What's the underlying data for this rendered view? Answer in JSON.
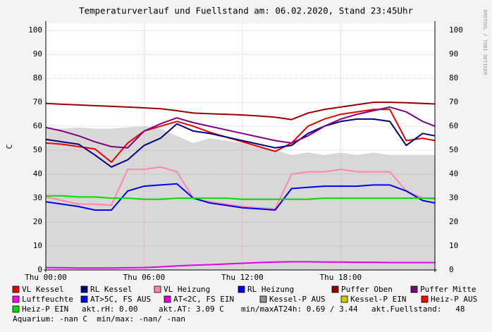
{
  "chart_data": {
    "type": "line",
    "title": "Temperaturverlauf und Fuellstand am: 06.02.2020, Stand 23:45Uhr",
    "y_label": "C",
    "watermark": "RRDTOOL / TOBI OETIKER",
    "x": [
      0,
      1,
      2,
      3,
      4,
      5,
      6,
      7,
      8,
      9,
      10,
      11,
      12,
      13,
      14,
      15,
      16,
      17,
      18,
      19,
      20,
      21,
      22,
      23,
      23.75
    ],
    "xlim": [
      0,
      23.75
    ],
    "xticks": [
      {
        "value": 0,
        "label": "Thu 00:00"
      },
      {
        "value": 6,
        "label": "Thu 06:00"
      },
      {
        "value": 12,
        "label": "Thu 12:00"
      },
      {
        "value": 18,
        "label": "Thu 18:00"
      }
    ],
    "ylim": [
      0,
      103
    ],
    "yticks": [
      0,
      10,
      20,
      30,
      40,
      50,
      60,
      70,
      80,
      90,
      100
    ],
    "grid": true,
    "series": [
      {
        "name": "VL Kessel",
        "color": "#ee0000",
        "values": [
          53,
          52.5,
          51.5,
          50.5,
          45,
          53,
          58,
          60,
          62,
          60,
          57.5,
          55.5,
          53.5,
          51.5,
          49.5,
          53,
          60,
          63,
          65,
          66,
          67,
          67,
          54,
          55,
          54
        ]
      },
      {
        "name": "RL Kessel",
        "color": "#000080",
        "values": [
          54.5,
          53.5,
          52.5,
          48,
          43,
          46,
          52,
          55,
          61,
          58,
          57,
          55.5,
          54,
          52.5,
          51,
          52,
          57,
          60,
          62,
          63,
          63,
          62,
          52,
          57,
          56
        ]
      },
      {
        "name": "VL Heizung",
        "color": "#ff88aa",
        "values": [
          30.5,
          29,
          27.5,
          27.5,
          27,
          42,
          42,
          43,
          41,
          30,
          28.5,
          27.5,
          26.5,
          26,
          25.5,
          40,
          41,
          41,
          42,
          41,
          41,
          41,
          33,
          30,
          29.5
        ]
      },
      {
        "name": "RL Heizung",
        "color": "#0000ee",
        "values": [
          28.5,
          27.5,
          26.5,
          25,
          25,
          33,
          35,
          35.5,
          36,
          30,
          28,
          27,
          26,
          25.5,
          25,
          34,
          34.5,
          35,
          35,
          35,
          35.5,
          35.5,
          33,
          29,
          28
        ]
      },
      {
        "name": "Puffer Oben",
        "color": "#990000",
        "values": [
          69.5,
          69.2,
          68.9,
          68.6,
          68.3,
          68,
          67.7,
          67.3,
          66.5,
          65.5,
          65.2,
          65,
          64.7,
          64.3,
          63.8,
          62.8,
          65.5,
          67,
          68,
          69,
          70,
          70,
          69.8,
          69.5,
          69.3
        ]
      },
      {
        "name": "Puffer Mitte",
        "color": "#800080",
        "values": [
          59.5,
          58,
          56,
          53.5,
          51.5,
          51,
          58,
          61,
          63.5,
          61.5,
          60,
          58.5,
          57,
          55.5,
          54,
          53,
          56,
          60,
          63,
          65,
          66.5,
          68,
          66,
          62,
          60
        ]
      },
      {
        "name": "Luftfeuchte",
        "color": "#ff00ff"
      },
      {
        "name": "AT>5C, FS AUS",
        "color": "#0000ff"
      },
      {
        "name": "AT<2C, FS EIN",
        "color": "#e000e0",
        "values": [
          1,
          0.9,
          0.8,
          0.8,
          0.8,
          0.9,
          1,
          1.3,
          1.7,
          2,
          2.2,
          2.5,
          2.8,
          3.1,
          3.3,
          3.4,
          3.4,
          3.3,
          3.3,
          3.2,
          3.2,
          3.1,
          3.1,
          3.1,
          3.1
        ]
      },
      {
        "name": "Kessel-P AUS",
        "color": "#909090",
        "style": "area",
        "values": [
          59,
          59,
          59.5,
          59,
          59,
          59.5,
          60,
          59,
          56,
          53,
          55,
          54,
          53,
          51,
          50,
          48,
          49,
          48,
          49,
          48,
          49,
          48,
          48,
          48,
          48
        ]
      },
      {
        "name": "Kessel-P EIN",
        "color": "#cccc00"
      },
      {
        "name": "Heiz-P AUS",
        "color": "#ff0000"
      },
      {
        "name": "Heiz-P EIN",
        "color": "#00dd00",
        "values": [
          31,
          31,
          30.5,
          30.5,
          30,
          30,
          29.5,
          29.5,
          30,
          30,
          30,
          30,
          29.5,
          29.5,
          29.5,
          29.5,
          29.5,
          30,
          30,
          30,
          30,
          30,
          30,
          30,
          30
        ]
      }
    ],
    "legend_notes": [
      "akt.rH: 0.00",
      "akt.AT: 3.09 C",
      "min/maxAT24h: 0.69 / 3.44",
      "akt.Fuellstand:   48",
      "Aquarium: -nan C  min/max: -nan/ -nan"
    ]
  }
}
